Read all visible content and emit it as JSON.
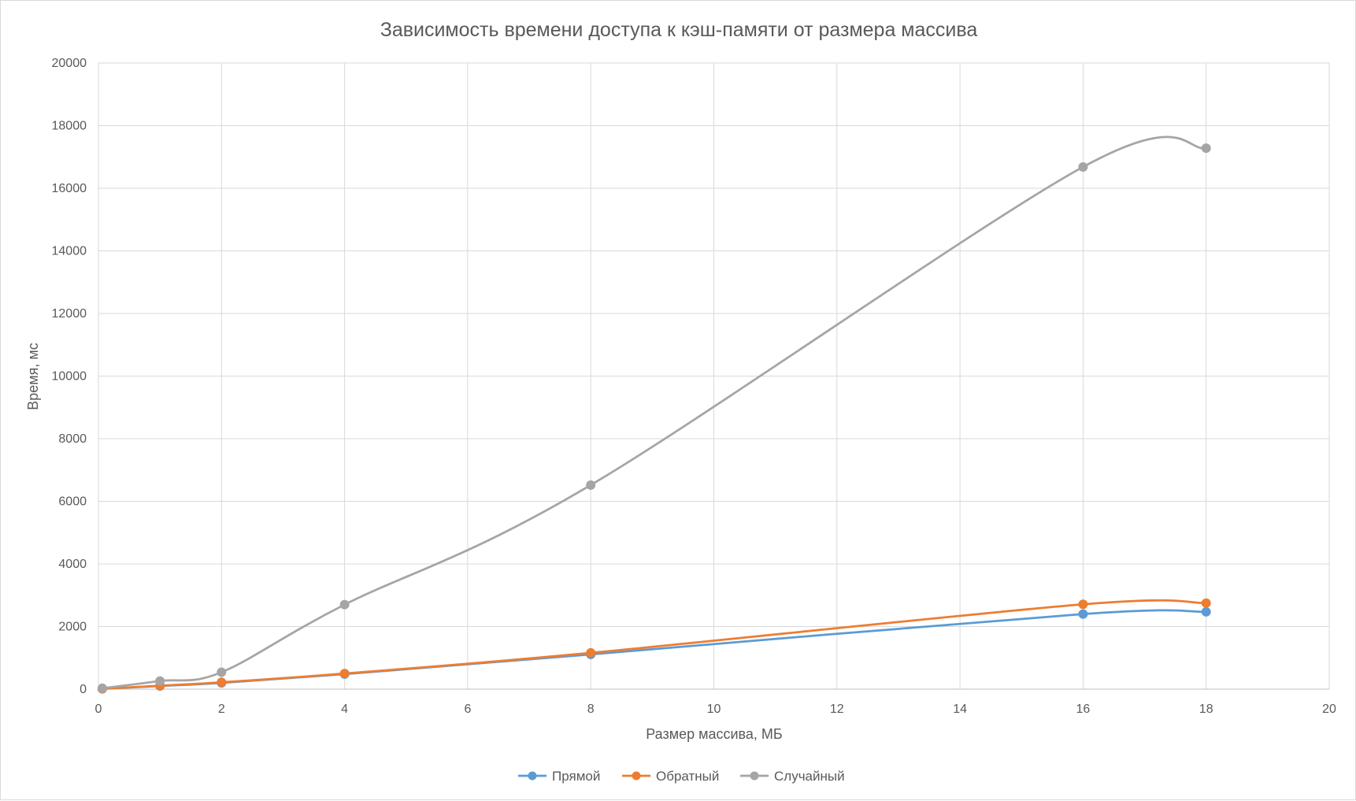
{
  "chart_data": {
    "type": "line",
    "title": "Зависимость времени доступа к кэш-памяти от размера массива",
    "xlabel": "Размер массива, МБ",
    "ylabel": "Время, мс",
    "xlim": [
      0,
      20
    ],
    "ylim": [
      0,
      20000
    ],
    "x_ticks": [
      "0",
      "2",
      "4",
      "6",
      "8",
      "10",
      "12",
      "14",
      "16",
      "18",
      "20"
    ],
    "y_ticks": [
      "0",
      "2000",
      "4000",
      "6000",
      "8000",
      "10000",
      "12000",
      "14000",
      "16000",
      "18000",
      "20000"
    ],
    "grid": true,
    "smooth": true,
    "legend_position": "bottom",
    "x": [
      0.0625,
      1,
      2,
      4,
      8,
      16,
      18
    ],
    "series": [
      {
        "name": "Прямой",
        "color": "#5b9bd5",
        "values": [
          10,
          100,
          200,
          480,
          1110,
          2400,
          2470
        ]
      },
      {
        "name": "Обратный",
        "color": "#ed7d31",
        "values": [
          12,
          110,
          220,
          500,
          1160,
          2710,
          2750
        ]
      },
      {
        "name": "Случайный",
        "color": "#a5a5a5",
        "values": [
          30,
          260,
          540,
          2700,
          6520,
          16680,
          17280
        ]
      }
    ]
  }
}
